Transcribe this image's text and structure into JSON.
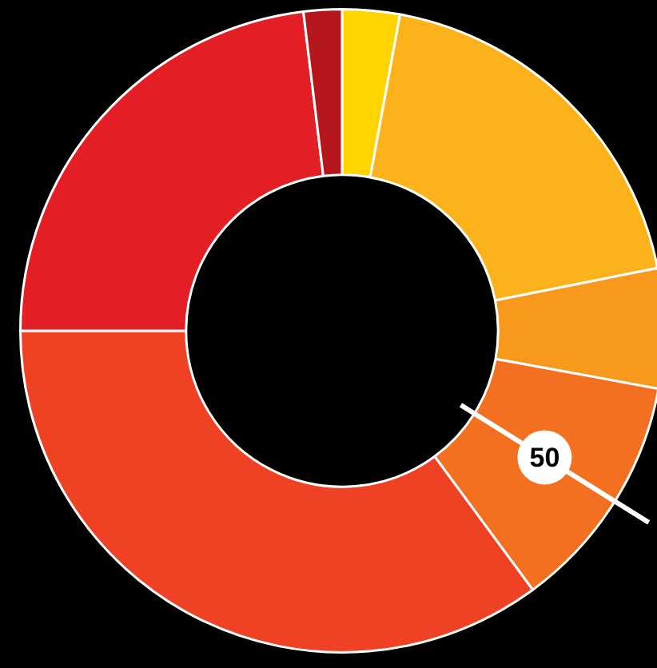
{
  "chart_data": {
    "type": "donut",
    "categories": [
      null,
      null,
      null,
      null,
      null,
      null,
      null
    ],
    "values": [
      12,
      79,
      25,
      50,
      146,
      96,
      8
    ],
    "colors": [
      "#ffd400",
      "#fbb21b",
      "#f8991d",
      "#f37021",
      "#ef4123",
      "#e31e24",
      "#b5171d"
    ],
    "value_labels": [
      null,
      null,
      null,
      "50",
      null,
      null,
      null
    ]
  }
}
